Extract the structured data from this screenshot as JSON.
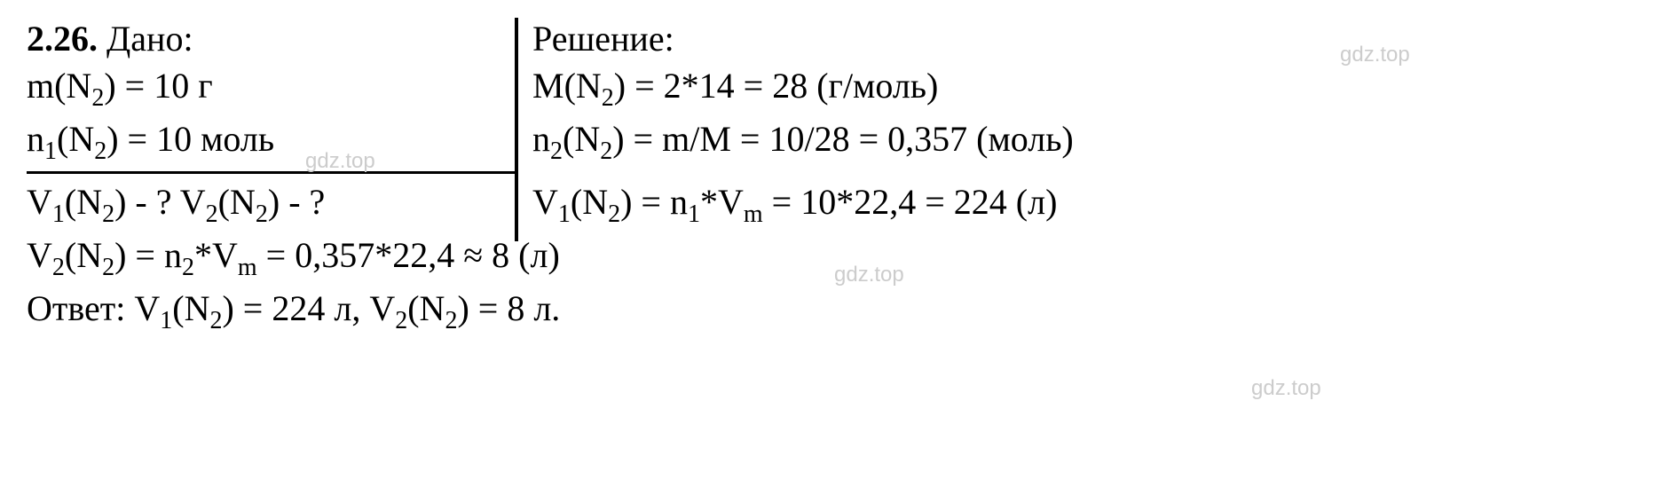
{
  "watermark": "gdz.top",
  "problem_number": "2.26.",
  "given_label": "Дано:",
  "solution_label": "Решение:",
  "answer_label": "Ответ:",
  "colors": {
    "text": "#000000",
    "background": "#ffffff",
    "watermark": "#cccccc"
  },
  "typography": {
    "body_fontsize": 40,
    "body_font": "Times New Roman",
    "watermark_fontsize": 24,
    "watermark_font": "Arial"
  },
  "given": {
    "line1_prefix": "m(N",
    "line1_sub": "2",
    "line1_suffix": ") = 10 г",
    "line2_prefix": "n",
    "line2_sub1": "1",
    "line2_mid": "(N",
    "line2_sub2": "2",
    "line2_suffix": ") = 10 моль"
  },
  "find": {
    "v1_prefix": "V",
    "v1_sub1": "1",
    "v1_mid": "(N",
    "v1_sub2": "2",
    "v1_suffix": ") - ? ",
    "v2_prefix": "V",
    "v2_sub1": "2",
    "v2_mid": "(N",
    "v2_sub2": "2",
    "v2_suffix": ") - ?"
  },
  "solution": {
    "line1_prefix": "M(N",
    "line1_sub": "2",
    "line1_suffix": ") = 2*14 = 28 (г/моль)",
    "line2_prefix": "n",
    "line2_sub1": "2",
    "line2_mid": "(N",
    "line2_sub2": "2",
    "line2_suffix": ") = m/M = 10/28 = 0,357 (моль)",
    "line3_prefix": "V",
    "line3_sub1": "1",
    "line3_mid": "(N",
    "line3_sub2": "2",
    "line3_suffix1": ") = n",
    "line3_sub3": "1",
    "line3_suffix2": "*V",
    "line3_sub4": "m",
    "line3_suffix3": " = 10*22,4 = 224 (л)",
    "line4_prefix": "V",
    "line4_sub1": "2",
    "line4_mid": "(N",
    "line4_sub2": "2",
    "line4_suffix1": ") = n",
    "line4_sub3": "2",
    "line4_suffix2": "*V",
    "line4_sub4": "m",
    "line4_suffix3": " = 0,357*22,4 ≈ 8 (л)"
  },
  "answer": {
    "v1_prefix": "V",
    "v1_sub1": "1",
    "v1_mid": "(N",
    "v1_sub2": "2",
    "v1_suffix": ") = 224 л, ",
    "v2_prefix": "V",
    "v2_sub1": "2",
    "v2_mid": "(N",
    "v2_sub2": "2",
    "v2_suffix": ") = 8 л."
  }
}
